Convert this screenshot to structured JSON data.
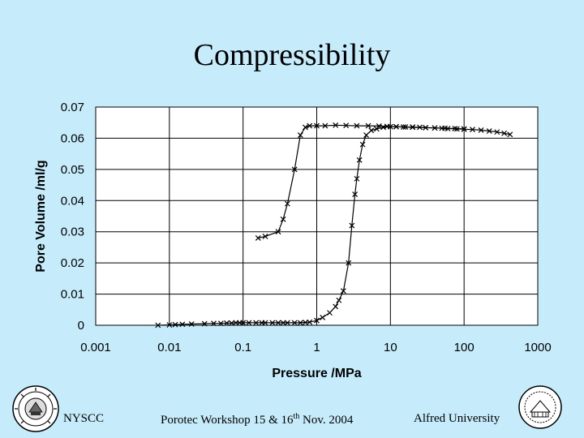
{
  "slide": {
    "title": "Compressibility",
    "footer_left": "NYSCC",
    "footer_center_pre": "Porotec Workshop 15 & 16",
    "footer_center_sup": "th",
    "footer_center_post": " Nov. 2004",
    "footer_right": "Alfred University",
    "background_color": "#c6ecfb"
  },
  "chart_data": {
    "type": "scatter",
    "title": "",
    "xlabel": "Pressure /MPa",
    "ylabel": "Pore Volume /ml/g",
    "xscale": "log",
    "xlim": [
      0.001,
      1000
    ],
    "ylim": [
      0,
      0.07
    ],
    "xticks": [
      0.001,
      0.01,
      0.1,
      1,
      10,
      100,
      1000
    ],
    "xtick_labels": [
      "0.001",
      "0.01",
      "0.1",
      "1",
      "10",
      "100",
      "1000"
    ],
    "yticks": [
      0,
      0.01,
      0.02,
      0.03,
      0.04,
      0.05,
      0.06,
      0.07
    ],
    "ytick_labels": [
      "0",
      "0.01",
      "0.02",
      "0.03",
      "0.04",
      "0.05",
      "0.06",
      "0.07"
    ],
    "grid": true,
    "marker": "x",
    "series": [
      {
        "x": [
          0.007,
          0.01,
          0.012,
          0.015,
          0.02,
          0.03,
          0.04,
          0.05,
          0.06,
          0.07,
          0.08,
          0.09,
          0.1,
          0.12,
          0.15,
          0.18,
          0.2,
          0.25,
          0.3,
          0.35,
          0.4,
          0.5,
          0.6,
          0.7,
          0.8,
          1.0,
          1.2,
          1.5,
          1.8,
          2.0,
          2.3,
          2.7,
          3.0,
          3.3,
          3.5,
          3.8,
          4.2,
          4.7,
          5.5,
          6.5,
          8,
          10,
          12,
          15,
          20,
          25,
          30,
          40,
          50,
          60,
          80,
          100,
          130,
          170,
          220,
          280,
          350,
          420
        ],
        "y": [
          0.0,
          0.0001,
          0.0002,
          0.0003,
          0.0004,
          0.0005,
          0.0006,
          0.0006,
          0.0007,
          0.0007,
          0.0008,
          0.0008,
          0.0008,
          0.0008,
          0.0008,
          0.0008,
          0.0008,
          0.0008,
          0.0008,
          0.0008,
          0.0008,
          0.0008,
          0.0008,
          0.0009,
          0.001,
          0.0015,
          0.0025,
          0.004,
          0.006,
          0.008,
          0.011,
          0.02,
          0.032,
          0.042,
          0.047,
          0.053,
          0.058,
          0.061,
          0.0625,
          0.063,
          0.0635,
          0.0637,
          0.0637,
          0.0636,
          0.0636,
          0.0635,
          0.0634,
          0.0633,
          0.0632,
          0.0631,
          0.063,
          0.0629,
          0.0628,
          0.0626,
          0.0623,
          0.062,
          0.0616,
          0.0612
        ]
      },
      {
        "x": [
          0.16,
          0.2,
          0.3,
          0.35,
          0.4,
          0.5,
          0.6,
          0.7,
          0.8,
          1.0,
          1.3,
          1.8,
          2.5,
          3.5,
          5,
          7,
          9,
          12,
          16,
          20,
          30,
          40,
          55,
          75,
          100
        ],
        "y": [
          0.028,
          0.0285,
          0.03,
          0.034,
          0.039,
          0.05,
          0.061,
          0.0635,
          0.064,
          0.064,
          0.064,
          0.0642,
          0.0641,
          0.064,
          0.064,
          0.0639,
          0.0638,
          0.0637,
          0.0636,
          0.0635,
          0.0634,
          0.0633,
          0.0632,
          0.0631,
          0.063
        ]
      }
    ]
  }
}
